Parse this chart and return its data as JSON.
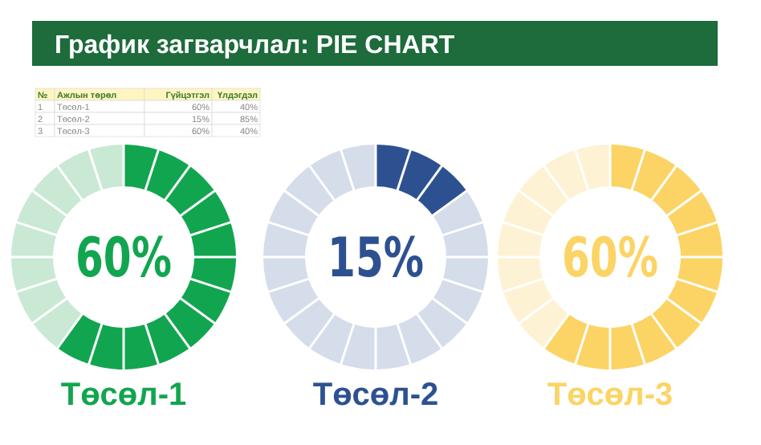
{
  "chart_data": [
    {
      "type": "other",
      "title": "График загварчлал: PIE CHART",
      "annotations": [
        "№",
        "Ажлын төрөл",
        "Гүйцэтгэл",
        "Үлдэгдэл",
        "1",
        "Төсөл-1",
        "60%",
        "40%",
        "2",
        "Төсөл-2",
        "15%",
        "85%",
        "3",
        "Төсөл-3",
        "60%",
        "40%"
      ]
    },
    {
      "type": "donut",
      "title": "Төсөл-1",
      "categories": [
        null,
        null
      ],
      "values": [
        60,
        40
      ],
      "colors": [
        "#12a54f",
        "#c9e9d5"
      ],
      "annotations": [
        "60%"
      ]
    },
    {
      "type": "donut",
      "title": "Төсөл-2",
      "categories": [
        null,
        null
      ],
      "values": [
        15,
        85
      ],
      "colors": [
        "#2d5190",
        "#d5dcea"
      ],
      "annotations": [
        "15%"
      ]
    },
    {
      "type": "donut",
      "title": "Төсөл-3",
      "categories": [
        null,
        null
      ],
      "values": [
        60,
        40
      ],
      "colors": [
        "#fbd465",
        "#fdf2d4"
      ],
      "annotations": [
        "60%"
      ]
    }
  ]
}
